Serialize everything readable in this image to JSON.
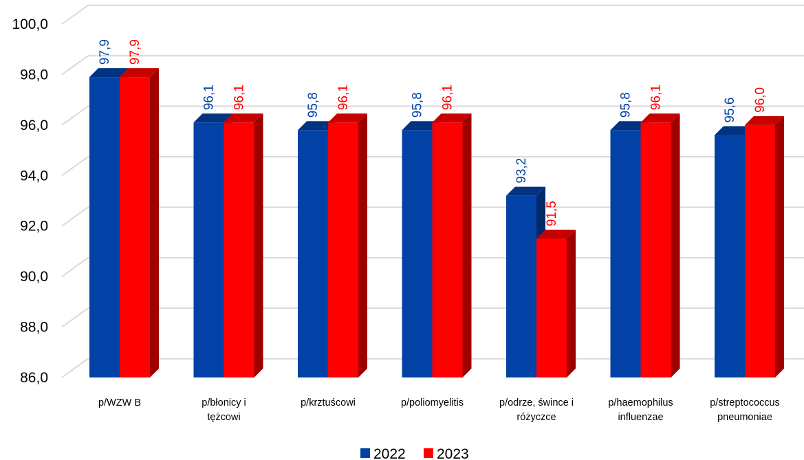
{
  "chart_data": {
    "type": "bar",
    "categories": [
      [
        "p/WZW B"
      ],
      [
        "p/błonicy i",
        "tężcowi"
      ],
      [
        "p/krztuścowi"
      ],
      [
        "p/poliomyelitis"
      ],
      [
        "p/odrze, śwince i",
        "różyczce"
      ],
      [
        "p/haemophilus",
        "influenzae"
      ],
      [
        "p/streptococcus",
        "pneumoniae"
      ]
    ],
    "series": [
      {
        "name": "2022",
        "color": "#0242a6",
        "values": [
          97.9,
          96.1,
          95.8,
          95.8,
          93.2,
          95.8,
          95.6
        ],
        "labels": [
          "97,9",
          "96,1",
          "95,8",
          "95,8",
          "93,2",
          "95,8",
          "95,6"
        ]
      },
      {
        "name": "2023",
        "color": "#ff0000",
        "values": [
          97.9,
          96.1,
          96.1,
          96.1,
          91.5,
          96.1,
          96.0
        ],
        "labels": [
          "97,9",
          "96,1",
          "96,1",
          "96,1",
          "91,5",
          "96,1",
          "96,0"
        ]
      }
    ],
    "ylim": [
      86.0,
      100.0
    ],
    "yticks": [
      86.0,
      88.0,
      90.0,
      92.0,
      94.0,
      96.0,
      98.0,
      100.0
    ],
    "ytick_labels": [
      "86,0",
      "88,0",
      "90,0",
      "92,0",
      "94,0",
      "96,0",
      "98,0",
      "100,0"
    ],
    "grid": true,
    "style": "3d-column",
    "legend_position": "bottom"
  }
}
